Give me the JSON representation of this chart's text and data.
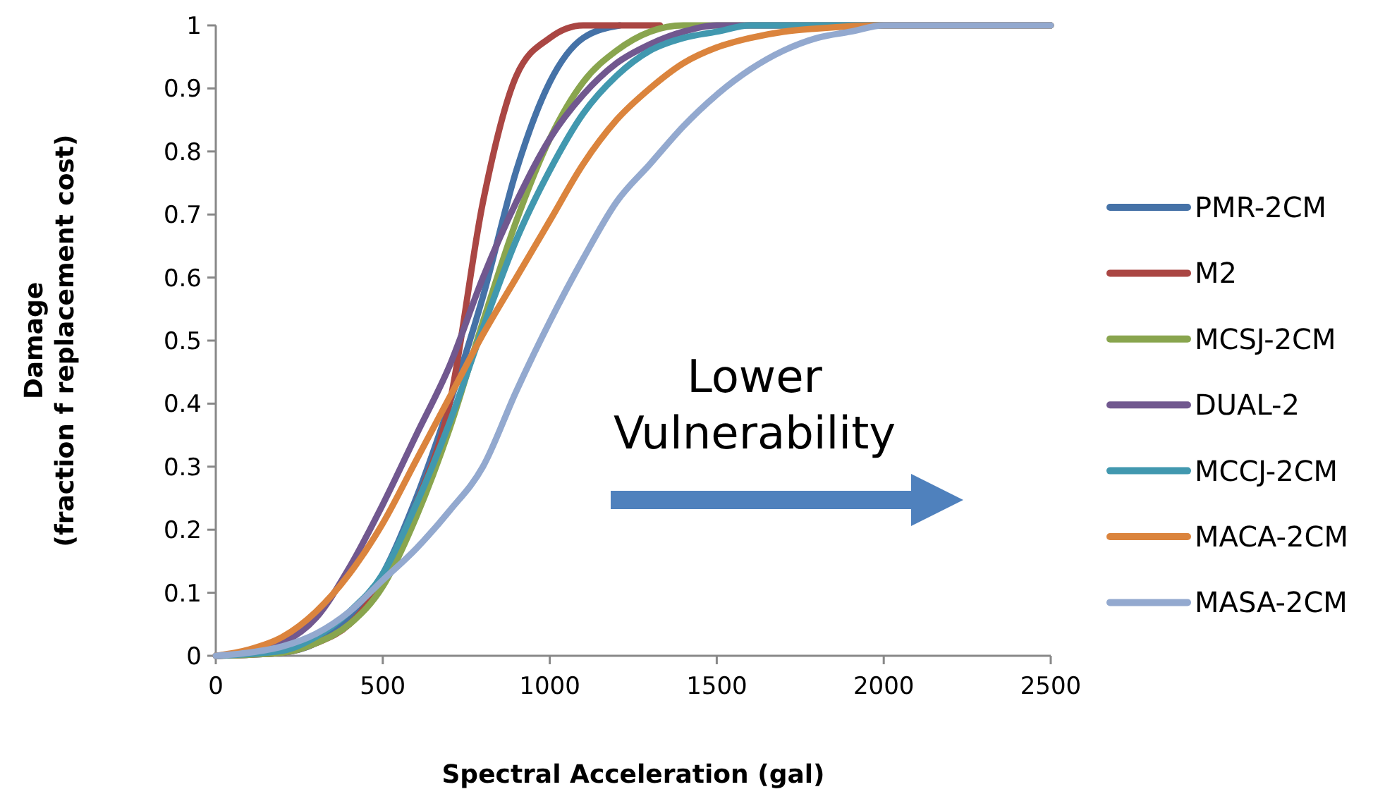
{
  "chart_data": {
    "type": "line",
    "xlabel": "Spectral Acceleration (gal)",
    "ylabel": "Damage\n(fraction f replacement cost)",
    "xlim": [
      0,
      2500
    ],
    "xticks": [
      0,
      500,
      1000,
      1500,
      2000,
      2500
    ],
    "ylim": [
      0,
      1
    ],
    "yticks": [
      0,
      0.1,
      0.2,
      0.3,
      0.4,
      0.5,
      0.6,
      0.7,
      0.8,
      0.9,
      1
    ],
    "grid": false,
    "legend": "right",
    "line_style": "solid",
    "annotations": [
      "Lower\nVulnerability"
    ],
    "series": [
      {
        "name": "PMR-2CM",
        "color": "#4572a7",
        "x": [
          0,
          200,
          300,
          400,
          500,
          600,
          700,
          800,
          900,
          1000,
          1100,
          1210
        ],
        "values": [
          0,
          0.005,
          0.02,
          0.06,
          0.13,
          0.25,
          0.4,
          0.57,
          0.77,
          0.91,
          0.98,
          1
        ]
      },
      {
        "name": "M2",
        "color": "#aa4643",
        "x": [
          0,
          200,
          300,
          400,
          500,
          600,
          700,
          800,
          900,
          1000,
          1100,
          1200,
          1330
        ],
        "values": [
          0,
          0.005,
          0.02,
          0.05,
          0.12,
          0.24,
          0.4,
          0.72,
          0.92,
          0.98,
          1,
          1,
          1
        ]
      },
      {
        "name": "MCSJ-2CM",
        "color": "#89a54e",
        "x": [
          0,
          200,
          300,
          400,
          500,
          600,
          700,
          800,
          900,
          1000,
          1100,
          1200,
          1300,
          1400,
          2500
        ],
        "values": [
          0,
          0.005,
          0.02,
          0.05,
          0.11,
          0.22,
          0.36,
          0.53,
          0.69,
          0.82,
          0.91,
          0.96,
          0.99,
          1,
          1
        ]
      },
      {
        "name": "DUAL-2",
        "color": "#71588f",
        "x": [
          0,
          100,
          200,
          300,
          400,
          500,
          600,
          700,
          800,
          900,
          1000,
          1100,
          1200,
          1300,
          1400,
          1500,
          2500
        ],
        "values": [
          0,
          0.005,
          0.02,
          0.06,
          0.14,
          0.24,
          0.35,
          0.46,
          0.6,
          0.72,
          0.82,
          0.89,
          0.94,
          0.97,
          0.99,
          1,
          1
        ]
      },
      {
        "name": "MCCJ-2CM",
        "color": "#4198af",
        "x": [
          0,
          200,
          300,
          400,
          500,
          600,
          700,
          800,
          900,
          1000,
          1100,
          1200,
          1300,
          1400,
          1500,
          1600,
          2500
        ],
        "values": [
          0,
          0.008,
          0.03,
          0.07,
          0.13,
          0.24,
          0.37,
          0.52,
          0.66,
          0.77,
          0.86,
          0.92,
          0.96,
          0.98,
          0.99,
          1,
          1
        ]
      },
      {
        "name": "MACA-2CM",
        "color": "#db843d",
        "x": [
          0,
          100,
          200,
          300,
          400,
          500,
          600,
          700,
          800,
          900,
          1000,
          1100,
          1200,
          1300,
          1400,
          1500,
          1600,
          1700,
          1800,
          2000,
          2500
        ],
        "values": [
          0,
          0.01,
          0.03,
          0.07,
          0.13,
          0.21,
          0.31,
          0.41,
          0.51,
          0.6,
          0.69,
          0.78,
          0.85,
          0.9,
          0.94,
          0.965,
          0.98,
          0.99,
          0.995,
          1,
          1
        ]
      },
      {
        "name": "MASA-2CM",
        "color": "#93a9cf",
        "x": [
          0,
          100,
          200,
          300,
          400,
          500,
          600,
          700,
          800,
          900,
          1000,
          1100,
          1200,
          1300,
          1400,
          1500,
          1600,
          1700,
          1800,
          1900,
          2000,
          2500
        ],
        "values": [
          0,
          0.005,
          0.015,
          0.035,
          0.07,
          0.12,
          0.17,
          0.23,
          0.3,
          0.42,
          0.53,
          0.63,
          0.72,
          0.78,
          0.84,
          0.89,
          0.93,
          0.96,
          0.98,
          0.99,
          1,
          1
        ]
      }
    ]
  }
}
